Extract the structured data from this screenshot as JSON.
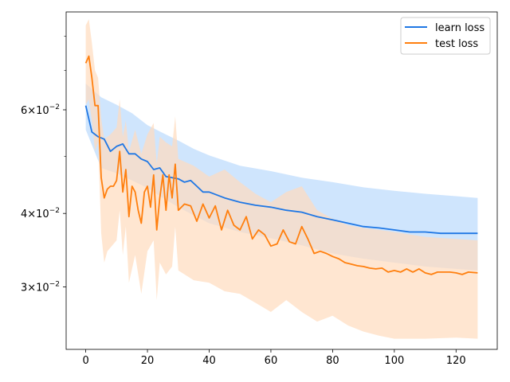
{
  "chart_data": {
    "type": "line",
    "title": "",
    "xlabel": "",
    "ylabel": "",
    "xlim": [
      -6.35,
      133.35
    ],
    "ylim": [
      0.0235,
      0.088
    ],
    "yscale": "log",
    "grid": false,
    "legend_position": "top-right",
    "x_ticks": [
      {
        "value": 0,
        "label": "0"
      },
      {
        "value": 20,
        "label": "20"
      },
      {
        "value": 40,
        "label": "40"
      },
      {
        "value": 60,
        "label": "60"
      },
      {
        "value": 80,
        "label": "80"
      },
      {
        "value": 100,
        "label": "100"
      },
      {
        "value": 120,
        "label": "120"
      }
    ],
    "y_ticks": [
      {
        "value": 0.03,
        "base": "3",
        "rest": "×10",
        "exp": "−2"
      },
      {
        "value": 0.04,
        "base": "4",
        "rest": "×10",
        "exp": "−2"
      },
      {
        "value": 0.06,
        "base": "6",
        "rest": "×10",
        "exp": "−2"
      }
    ],
    "y_minor_ticks": [
      0.05,
      0.07,
      0.08
    ],
    "series": [
      {
        "name": "learn loss",
        "color": "#1f77e4",
        "band_color": "#cce4fd",
        "points": [
          [
            0,
            0.061
          ],
          [
            2,
            0.055
          ],
          [
            4,
            0.054
          ],
          [
            6,
            0.0535
          ],
          [
            8,
            0.051
          ],
          [
            10,
            0.052
          ],
          [
            12,
            0.0525
          ],
          [
            14,
            0.0505
          ],
          [
            16,
            0.0505
          ],
          [
            18,
            0.0495
          ],
          [
            20,
            0.049
          ],
          [
            22,
            0.0475
          ],
          [
            24,
            0.0478
          ],
          [
            26,
            0.0462
          ],
          [
            28,
            0.046
          ],
          [
            30,
            0.0458
          ],
          [
            32,
            0.0452
          ],
          [
            34,
            0.0455
          ],
          [
            36,
            0.0445
          ],
          [
            38,
            0.0435
          ],
          [
            40,
            0.0435
          ],
          [
            45,
            0.0425
          ],
          [
            50,
            0.0418
          ],
          [
            55,
            0.0413
          ],
          [
            60,
            0.041
          ],
          [
            65,
            0.0405
          ],
          [
            70,
            0.0402
          ],
          [
            75,
            0.0395
          ],
          [
            80,
            0.039
          ],
          [
            85,
            0.0385
          ],
          [
            90,
            0.038
          ],
          [
            95,
            0.0378
          ],
          [
            100,
            0.0375
          ],
          [
            105,
            0.0372
          ],
          [
            110,
            0.0372
          ],
          [
            115,
            0.037
          ],
          [
            120,
            0.037
          ],
          [
            127,
            0.037
          ]
        ],
        "upper": [
          [
            0,
            0.0665
          ],
          [
            5,
            0.063
          ],
          [
            10,
            0.0612
          ],
          [
            15,
            0.0592
          ],
          [
            20,
            0.0565
          ],
          [
            25,
            0.0548
          ],
          [
            30,
            0.0532
          ],
          [
            35,
            0.0515
          ],
          [
            40,
            0.0502
          ],
          [
            50,
            0.0482
          ],
          [
            60,
            0.0472
          ],
          [
            70,
            0.046
          ],
          [
            80,
            0.0452
          ],
          [
            90,
            0.0443
          ],
          [
            100,
            0.0437
          ],
          [
            110,
            0.0432
          ],
          [
            120,
            0.0428
          ],
          [
            127,
            0.0425
          ]
        ],
        "lower": [
          [
            0,
            0.0555
          ],
          [
            5,
            0.0478
          ],
          [
            10,
            0.0468
          ],
          [
            15,
            0.0455
          ],
          [
            20,
            0.0442
          ],
          [
            25,
            0.0425
          ],
          [
            30,
            0.041
          ],
          [
            35,
            0.0397
          ],
          [
            40,
            0.0385
          ],
          [
            50,
            0.0372
          ],
          [
            60,
            0.0363
          ],
          [
            70,
            0.0353
          ],
          [
            80,
            0.0342
          ],
          [
            90,
            0.0335
          ],
          [
            100,
            0.033
          ],
          [
            110,
            0.0325
          ],
          [
            120,
            0.0322
          ],
          [
            127,
            0.032
          ]
        ]
      },
      {
        "name": "test loss",
        "color": "#ff7f0e",
        "band_color": "#ffdcbe",
        "points": [
          [
            0,
            0.072
          ],
          [
            1,
            0.074
          ],
          [
            2,
            0.068
          ],
          [
            3,
            0.061
          ],
          [
            4,
            0.061
          ],
          [
            5,
            0.046
          ],
          [
            6,
            0.0425
          ],
          [
            7,
            0.044
          ],
          [
            8,
            0.0445
          ],
          [
            9,
            0.0445
          ],
          [
            10,
            0.0455
          ],
          [
            11,
            0.051
          ],
          [
            12,
            0.0435
          ],
          [
            13,
            0.0475
          ],
          [
            14,
            0.0395
          ],
          [
            15,
            0.0445
          ],
          [
            16,
            0.0435
          ],
          [
            17,
            0.0405
          ],
          [
            18,
            0.0385
          ],
          [
            19,
            0.0435
          ],
          [
            20,
            0.0445
          ],
          [
            21,
            0.041
          ],
          [
            22,
            0.0465
          ],
          [
            23,
            0.0375
          ],
          [
            24,
            0.0425
          ],
          [
            25,
            0.0465
          ],
          [
            26,
            0.0405
          ],
          [
            27,
            0.0465
          ],
          [
            28,
            0.0425
          ],
          [
            29,
            0.0485
          ],
          [
            30,
            0.0405
          ],
          [
            32,
            0.0415
          ],
          [
            34,
            0.0412
          ],
          [
            36,
            0.0388
          ],
          [
            38,
            0.0415
          ],
          [
            40,
            0.0393
          ],
          [
            42,
            0.0412
          ],
          [
            44,
            0.0375
          ],
          [
            46,
            0.0405
          ],
          [
            48,
            0.0382
          ],
          [
            50,
            0.0375
          ],
          [
            52,
            0.0395
          ],
          [
            54,
            0.0362
          ],
          [
            56,
            0.0375
          ],
          [
            58,
            0.0368
          ],
          [
            60,
            0.0352
          ],
          [
            62,
            0.0355
          ],
          [
            64,
            0.0375
          ],
          [
            66,
            0.0358
          ],
          [
            68,
            0.0355
          ],
          [
            70,
            0.038
          ],
          [
            72,
            0.0362
          ],
          [
            74,
            0.0342
          ],
          [
            76,
            0.0345
          ],
          [
            78,
            0.0342
          ],
          [
            80,
            0.0338
          ],
          [
            82,
            0.0335
          ],
          [
            84,
            0.033
          ],
          [
            86,
            0.0328
          ],
          [
            88,
            0.0326
          ],
          [
            90,
            0.0325
          ],
          [
            92,
            0.0323
          ],
          [
            94,
            0.0322
          ],
          [
            96,
            0.0323
          ],
          [
            98,
            0.0318
          ],
          [
            100,
            0.032
          ],
          [
            102,
            0.0318
          ],
          [
            104,
            0.0322
          ],
          [
            106,
            0.0318
          ],
          [
            108,
            0.0322
          ],
          [
            110,
            0.0317
          ],
          [
            112,
            0.0315
          ],
          [
            114,
            0.0318
          ],
          [
            116,
            0.0318
          ],
          [
            118,
            0.0318
          ],
          [
            120,
            0.0317
          ],
          [
            122,
            0.0315
          ],
          [
            124,
            0.0318
          ],
          [
            127,
            0.0317
          ]
        ],
        "upper": [
          [
            0,
            0.0835
          ],
          [
            1,
            0.0855
          ],
          [
            2,
            0.078
          ],
          [
            3,
            0.07
          ],
          [
            4,
            0.068
          ],
          [
            5,
            0.058
          ],
          [
            6,
            0.0535
          ],
          [
            8,
            0.0545
          ],
          [
            10,
            0.056
          ],
          [
            11,
            0.0625
          ],
          [
            12,
            0.054
          ],
          [
            13,
            0.0575
          ],
          [
            14,
            0.051
          ],
          [
            16,
            0.0555
          ],
          [
            18,
            0.0505
          ],
          [
            20,
            0.0545
          ],
          [
            22,
            0.057
          ],
          [
            23,
            0.0485
          ],
          [
            24,
            0.054
          ],
          [
            26,
            0.0528
          ],
          [
            28,
            0.052
          ],
          [
            29,
            0.0585
          ],
          [
            30,
            0.0495
          ],
          [
            35,
            0.0482
          ],
          [
            40,
            0.0462
          ],
          [
            45,
            0.0475
          ],
          [
            50,
            0.0452
          ],
          [
            55,
            0.0432
          ],
          [
            60,
            0.0418
          ],
          [
            65,
            0.0435
          ],
          [
            70,
            0.0445
          ],
          [
            75,
            0.0405
          ],
          [
            80,
            0.0392
          ],
          [
            85,
            0.0382
          ],
          [
            90,
            0.0378
          ],
          [
            95,
            0.0375
          ],
          [
            100,
            0.0372
          ],
          [
            110,
            0.0365
          ],
          [
            120,
            0.0362
          ],
          [
            127,
            0.036
          ]
        ],
        "lower": [
          [
            0,
            0.0612
          ],
          [
            1,
            0.0625
          ],
          [
            2,
            0.0575
          ],
          [
            3,
            0.051
          ],
          [
            4,
            0.053
          ],
          [
            5,
            0.037
          ],
          [
            6,
            0.033
          ],
          [
            7,
            0.0345
          ],
          [
            8,
            0.035
          ],
          [
            10,
            0.036
          ],
          [
            11,
            0.0405
          ],
          [
            12,
            0.034
          ],
          [
            13,
            0.038
          ],
          [
            14,
            0.0305
          ],
          [
            16,
            0.034
          ],
          [
            18,
            0.0292
          ],
          [
            20,
            0.0345
          ],
          [
            22,
            0.036
          ],
          [
            23,
            0.0285
          ],
          [
            24,
            0.033
          ],
          [
            26,
            0.0315
          ],
          [
            28,
            0.0325
          ],
          [
            29,
            0.038
          ],
          [
            30,
            0.032
          ],
          [
            35,
            0.0308
          ],
          [
            40,
            0.0305
          ],
          [
            45,
            0.0295
          ],
          [
            50,
            0.0292
          ],
          [
            55,
            0.0282
          ],
          [
            60,
            0.0272
          ],
          [
            65,
            0.0285
          ],
          [
            70,
            0.0272
          ],
          [
            75,
            0.0262
          ],
          [
            80,
            0.0268
          ],
          [
            85,
            0.0258
          ],
          [
            90,
            0.0252
          ],
          [
            95,
            0.0248
          ],
          [
            100,
            0.0245
          ],
          [
            110,
            0.0245
          ],
          [
            120,
            0.0246
          ],
          [
            127,
            0.0245
          ]
        ]
      }
    ]
  }
}
